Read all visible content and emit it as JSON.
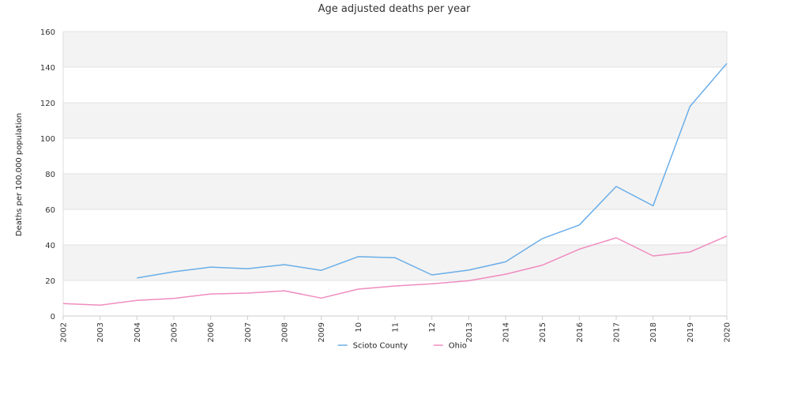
{
  "chart_data": {
    "type": "line",
    "title": "Age adjusted deaths per year",
    "xlabel": "",
    "ylabel": "Deaths per 100,000 population",
    "x": [
      "2002",
      "2003",
      "2004",
      "2005",
      "2006",
      "2007",
      "2008",
      "2009",
      "10",
      "11",
      "12",
      "2013",
      "2014",
      "2015",
      "2016",
      "2017",
      "2018",
      "2019",
      "2020"
    ],
    "ylim": [
      0,
      160
    ],
    "yticks": [
      0,
      20,
      40,
      60,
      80,
      100,
      120,
      140,
      160
    ],
    "grid": true,
    "legend_position": "bottom",
    "series": [
      {
        "name": "Scioto County",
        "color": "#6aaee8",
        "values": [
          null,
          null,
          21.4,
          24.9,
          27.5,
          26.6,
          28.9,
          25.7,
          33.4,
          32.8,
          23.1,
          25.8,
          30.5,
          43.6,
          51.2,
          72.9,
          62.0,
          117.8,
          142.1
        ]
      },
      {
        "name": "Ohio",
        "color": "#f08cbf",
        "values": [
          7.0,
          6.1,
          8.8,
          9.9,
          12.4,
          12.9,
          14.2,
          10.1,
          15.1,
          16.9,
          18.1,
          19.8,
          23.5,
          28.6,
          37.6,
          44.0,
          33.8,
          36.0,
          45.0
        ]
      }
    ]
  }
}
